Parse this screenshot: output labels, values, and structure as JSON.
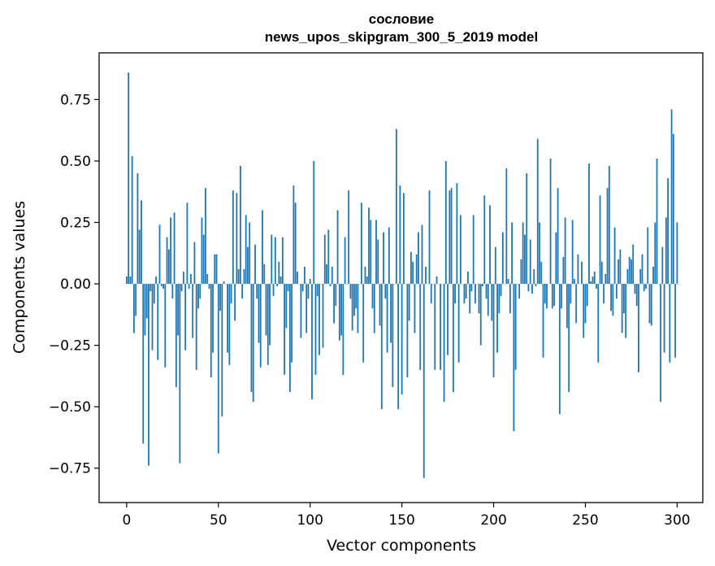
{
  "chart_data": {
    "type": "bar",
    "title": "сословие",
    "subtitle": "news_upos_skipgram_300_5_2019 model",
    "xlabel": "Vector components",
    "ylabel": "Components values",
    "xlim": [
      -15,
      314
    ],
    "ylim": [
      -0.89,
      0.94
    ],
    "xticks": [
      0,
      50,
      100,
      150,
      200,
      250,
      300
    ],
    "xtick_labels": [
      "0",
      "50",
      "100",
      "150",
      "200",
      "250",
      "300"
    ],
    "yticks": [
      -0.75,
      -0.5,
      -0.25,
      0.0,
      0.25,
      0.5,
      0.75
    ],
    "ytick_labels": [
      "−0.75",
      "−0.50",
      "−0.25",
      "0.00",
      "0.25",
      "0.50",
      "0.75"
    ],
    "bar_color": "#1f77b4",
    "x_start": 0,
    "values": [
      0.03,
      0.86,
      0.03,
      0.52,
      -0.2,
      -0.13,
      0.45,
      0.22,
      0.34,
      -0.65,
      -0.21,
      -0.14,
      -0.74,
      -0.03,
      -0.27,
      -0.08,
      0.03,
      -0.31,
      0.24,
      -0.01,
      -0.02,
      -0.34,
      0.19,
      0.14,
      0.27,
      -0.06,
      0.29,
      -0.42,
      -0.21,
      -0.73,
      -0.03,
      0.05,
      -0.27,
      0.33,
      -0.02,
      0.04,
      -0.22,
      0.17,
      -0.35,
      -0.1,
      -0.06,
      0.27,
      0.2,
      0.39,
      0.04,
      -0.02,
      -0.38,
      -0.28,
      0.12,
      0.12,
      -0.69,
      -0.11,
      -0.54,
      0.01,
      0.0,
      -0.28,
      -0.33,
      -0.08,
      0.38,
      -0.15,
      0.37,
      0.06,
      0.48,
      -0.06,
      0.06,
      0.28,
      0.15,
      0.25,
      -0.44,
      -0.48,
      0.16,
      -0.06,
      -0.24,
      -0.34,
      0.3,
      0.08,
      -0.21,
      -0.33,
      -0.25,
      0.2,
      -0.05,
      0.19,
      -0.01,
      0.09,
      0.03,
      0.19,
      -0.37,
      -0.18,
      -0.03,
      -0.44,
      -0.32,
      0.4,
      0.33,
      0.05,
      0.0,
      -0.22,
      -0.03,
      0.07,
      -0.2,
      -0.06,
      0.02,
      -0.47,
      0.5,
      -0.37,
      -0.05,
      -0.29,
      0.0,
      -0.26,
      0.2,
      0.08,
      0.22,
      -0.01,
      0.07,
      -0.16,
      -0.09,
      0.3,
      -0.23,
      -0.21,
      -0.37,
      0.19,
      0.0,
      0.38,
      -0.06,
      -0.19,
      -0.13,
      -0.1,
      -0.2,
      0.0,
      0.33,
      -0.32,
      0.07,
      0.03,
      0.31,
      0.26,
      -0.1,
      -0.2,
      0.26,
      0.18,
      -0.17,
      -0.51,
      0.21,
      -0.06,
      -0.28,
      0.23,
      -0.24,
      -0.42,
      0.0,
      0.63,
      -0.51,
      0.4,
      -0.45,
      0.37,
      0.0,
      -0.38,
      -0.15,
      0.13,
      0.09,
      -0.2,
      0.12,
      0.21,
      -0.35,
      0.24,
      -0.79,
      0.07,
      0.0,
      0.38,
      -0.08,
      0.0,
      -0.35,
      0.03,
      0.0,
      -0.35,
      0.0,
      -0.48,
      0.5,
      -0.29,
      0.38,
      0.39,
      -0.44,
      -0.08,
      0.41,
      -0.32,
      0.28,
      0.0,
      -0.08,
      -0.06,
      0.05,
      -0.12,
      -0.03,
      0.28,
      -0.08,
      0.0,
      -0.12,
      -0.25,
      -0.01,
      0.36,
      -0.06,
      -0.13,
      0.32,
      -0.15,
      -0.38,
      0.15,
      -0.28,
      -0.12,
      -0.05,
      0.21,
      0.0,
      0.47,
      0.02,
      -0.12,
      0.25,
      -0.6,
      -0.35,
      0.0,
      -0.06,
      0.1,
      0.25,
      0.2,
      0.45,
      -0.03,
      0.18,
      -0.04,
      0.06,
      -0.01,
      0.59,
      0.25,
      0.09,
      -0.3,
      -0.08,
      -0.1,
      0.0,
      0.51,
      -0.1,
      -0.09,
      0.21,
      0.39,
      -0.53,
      -0.1,
      0.11,
      0.27,
      -0.18,
      -0.44,
      -0.08,
      0.26,
      0.02,
      -0.16,
      0.12,
      0.0,
      0.09,
      -0.22,
      -0.16,
      -0.09,
      0.49,
      0.01,
      0.03,
      0.05,
      -0.02,
      -0.32,
      0.36,
      0.09,
      -0.08,
      0.04,
      0.39,
      0.48,
      -0.11,
      -0.13,
      0.23,
      -0.06,
      0.1,
      0.14,
      -0.2,
      -0.12,
      -0.22,
      0.06,
      0.11,
      0.1,
      0.16,
      -0.04,
      -0.09,
      -0.36,
      0.06,
      0.12,
      -0.03,
      -0.02,
      0.23,
      -0.16,
      -0.17,
      0.07,
      0.25,
      0.51,
      0.0,
      -0.48,
      0.15,
      -0.28,
      0.27,
      0.43,
      -0.32,
      0.71,
      0.61,
      -0.3,
      0.25,
      0.0
    ]
  }
}
